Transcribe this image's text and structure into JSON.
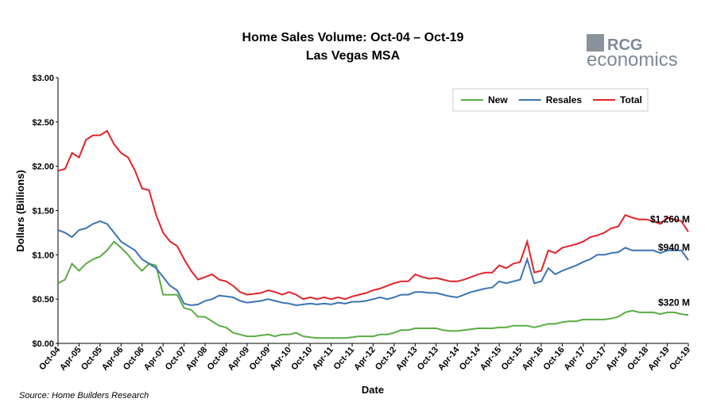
{
  "chart_data": {
    "type": "line",
    "title": "Home Sales Volume: Oct-04 – Oct-19",
    "subtitle": "Las Vegas MSA",
    "y_label": "Dollars (Billions)",
    "x_label": "Date",
    "source": "Source: Home Builders Research",
    "logo": {
      "top": "RCG",
      "bottom": "economics"
    },
    "legend": "upper right",
    "grid": false,
    "categories": [
      "Oct-04",
      null,
      null,
      "Apr-05",
      null,
      null,
      "Oct-05",
      null,
      null,
      "Apr-06",
      null,
      null,
      "Oct-06",
      null,
      null,
      "Apr-07",
      null,
      null,
      "Oct-07",
      null,
      null,
      "Apr-08",
      null,
      null,
      "Oct-08",
      null,
      null,
      "Apr-09",
      null,
      null,
      "Oct-09",
      null,
      null,
      "Apr-10",
      null,
      null,
      "Oct-10",
      null,
      null,
      "Apr-11",
      null,
      null,
      "Oct-11",
      null,
      null,
      "Apr-12",
      null,
      null,
      "Oct-12",
      null,
      null,
      "Apr-13",
      null,
      null,
      "Oct-13",
      null,
      null,
      "Apr-14",
      null,
      null,
      "Oct-14",
      null,
      null,
      "Apr-15",
      null,
      null,
      "Oct-15",
      null,
      null,
      "Apr-16",
      null,
      null,
      "Oct-16",
      null,
      null,
      "Apr-17",
      null,
      null,
      "Oct-17",
      null,
      null,
      "Apr-18",
      null,
      null,
      "Oct-18",
      null,
      null,
      "Apr-19",
      null,
      null,
      "Oct-19"
    ],
    "ylim": [
      0,
      3
    ],
    "yticks": [
      {
        "value": 0,
        "label": "$0.00"
      },
      {
        "value": 0.5,
        "label": "$0.50"
      },
      {
        "value": 1,
        "label": "$1.00"
      },
      {
        "value": 1.5,
        "label": "$1.50"
      },
      {
        "value": 2,
        "label": "$2.00"
      },
      {
        "value": 2.5,
        "label": "$2.50"
      },
      {
        "value": 3,
        "label": "$3.00"
      }
    ],
    "series": [
      {
        "name": "New",
        "color": "#5aac44",
        "values": [
          0.68,
          0.72,
          0.9,
          0.82,
          0.9,
          0.95,
          0.98,
          1.05,
          1.15,
          1.08,
          1.0,
          0.9,
          0.82,
          0.9,
          0.88,
          0.55,
          0.55,
          0.55,
          0.4,
          0.38,
          0.3,
          0.3,
          0.25,
          0.2,
          0.18,
          0.12,
          0.1,
          0.08,
          0.08,
          0.09,
          0.1,
          0.08,
          0.1,
          0.1,
          0.12,
          0.08,
          0.07,
          0.06,
          0.06,
          0.06,
          0.06,
          0.06,
          0.07,
          0.08,
          0.08,
          0.08,
          0.1,
          0.1,
          0.12,
          0.15,
          0.15,
          0.17,
          0.17,
          0.17,
          0.17,
          0.15,
          0.14,
          0.14,
          0.15,
          0.16,
          0.17,
          0.17,
          0.17,
          0.18,
          0.18,
          0.2,
          0.2,
          0.2,
          0.18,
          0.2,
          0.22,
          0.22,
          0.24,
          0.25,
          0.25,
          0.27,
          0.27,
          0.27,
          0.27,
          0.28,
          0.3,
          0.35,
          0.37,
          0.35,
          0.35,
          0.35,
          0.33,
          0.35,
          0.35,
          0.33,
          0.32
        ],
        "value_labels": [
          null,
          null,
          null,
          null,
          null,
          null,
          null,
          null,
          null,
          null,
          null,
          null,
          null,
          null,
          null,
          null,
          null,
          null,
          null,
          null,
          null,
          null,
          null,
          null,
          null,
          null,
          null,
          null,
          null,
          null,
          null,
          null,
          null,
          null,
          null,
          null,
          null,
          null,
          null,
          null,
          null,
          null,
          null,
          null,
          null,
          null,
          null,
          null,
          null,
          null,
          null,
          null,
          null,
          null,
          null,
          null,
          null,
          null,
          null,
          null,
          null,
          null,
          null,
          null,
          null,
          null,
          null,
          null,
          null,
          null,
          null,
          null,
          null,
          null,
          null,
          null,
          null,
          null,
          null,
          null,
          null,
          null,
          null,
          null,
          null,
          null,
          null,
          null,
          null,
          null,
          "$320 M"
        ]
      },
      {
        "name": "Resales",
        "color": "#3b74b0",
        "values": [
          1.28,
          1.25,
          1.2,
          1.28,
          1.3,
          1.35,
          1.38,
          1.35,
          1.25,
          1.15,
          1.1,
          1.05,
          0.95,
          0.9,
          0.85,
          0.75,
          0.65,
          0.6,
          0.45,
          0.43,
          0.44,
          0.48,
          0.5,
          0.54,
          0.53,
          0.52,
          0.48,
          0.46,
          0.47,
          0.48,
          0.5,
          0.48,
          0.46,
          0.45,
          0.43,
          0.44,
          0.45,
          0.44,
          0.45,
          0.44,
          0.46,
          0.45,
          0.47,
          0.47,
          0.48,
          0.5,
          0.52,
          0.5,
          0.52,
          0.55,
          0.55,
          0.58,
          0.58,
          0.57,
          0.57,
          0.55,
          0.53,
          0.52,
          0.55,
          0.58,
          0.6,
          0.62,
          0.63,
          0.7,
          0.68,
          0.7,
          0.72,
          0.95,
          0.68,
          0.7,
          0.85,
          0.78,
          0.82,
          0.85,
          0.88,
          0.92,
          0.95,
          1.0,
          1.0,
          1.02,
          1.03,
          1.08,
          1.05,
          1.05,
          1.05,
          1.05,
          1.02,
          1.05,
          1.05,
          1.05,
          0.94
        ],
        "value_labels": [
          null,
          null,
          null,
          null,
          null,
          null,
          null,
          null,
          null,
          null,
          null,
          null,
          null,
          null,
          null,
          null,
          null,
          null,
          null,
          null,
          null,
          null,
          null,
          null,
          null,
          null,
          null,
          null,
          null,
          null,
          null,
          null,
          null,
          null,
          null,
          null,
          null,
          null,
          null,
          null,
          null,
          null,
          null,
          null,
          null,
          null,
          null,
          null,
          null,
          null,
          null,
          null,
          null,
          null,
          null,
          null,
          null,
          null,
          null,
          null,
          null,
          null,
          null,
          null,
          null,
          null,
          null,
          null,
          null,
          null,
          null,
          null,
          null,
          null,
          null,
          null,
          null,
          null,
          null,
          null,
          null,
          null,
          null,
          null,
          null,
          null,
          null,
          null,
          null,
          null,
          "$940 M"
        ]
      },
      {
        "name": "Total",
        "color": "#e0242a",
        "values": [
          1.95,
          1.97,
          2.15,
          2.1,
          2.3,
          2.35,
          2.35,
          2.4,
          2.25,
          2.15,
          2.1,
          1.95,
          1.75,
          1.73,
          1.45,
          1.25,
          1.15,
          1.1,
          0.95,
          0.82,
          0.72,
          0.75,
          0.78,
          0.72,
          0.7,
          0.65,
          0.58,
          0.55,
          0.56,
          0.57,
          0.6,
          0.58,
          0.55,
          0.58,
          0.55,
          0.5,
          0.52,
          0.5,
          0.52,
          0.5,
          0.52,
          0.5,
          0.53,
          0.55,
          0.57,
          0.6,
          0.62,
          0.65,
          0.68,
          0.7,
          0.7,
          0.78,
          0.75,
          0.73,
          0.74,
          0.72,
          0.7,
          0.7,
          0.72,
          0.75,
          0.78,
          0.8,
          0.8,
          0.88,
          0.85,
          0.9,
          0.92,
          1.15,
          0.8,
          0.82,
          1.05,
          1.02,
          1.08,
          1.1,
          1.12,
          1.15,
          1.2,
          1.22,
          1.25,
          1.3,
          1.32,
          1.45,
          1.42,
          1.4,
          1.4,
          1.38,
          1.35,
          1.42,
          1.4,
          1.38,
          1.26
        ],
        "value_labels": [
          null,
          null,
          null,
          null,
          null,
          null,
          null,
          null,
          null,
          null,
          null,
          null,
          null,
          null,
          null,
          null,
          null,
          null,
          null,
          null,
          null,
          null,
          null,
          null,
          null,
          null,
          null,
          null,
          null,
          null,
          null,
          null,
          null,
          null,
          null,
          null,
          null,
          null,
          null,
          null,
          null,
          null,
          null,
          null,
          null,
          null,
          null,
          null,
          null,
          null,
          null,
          null,
          null,
          null,
          null,
          null,
          null,
          null,
          null,
          null,
          null,
          null,
          null,
          null,
          null,
          null,
          null,
          null,
          null,
          null,
          null,
          null,
          null,
          null,
          null,
          null,
          null,
          null,
          null,
          null,
          null,
          null,
          null,
          null,
          null,
          null,
          null,
          null,
          null,
          null,
          "$1,260 M"
        ]
      }
    ]
  }
}
